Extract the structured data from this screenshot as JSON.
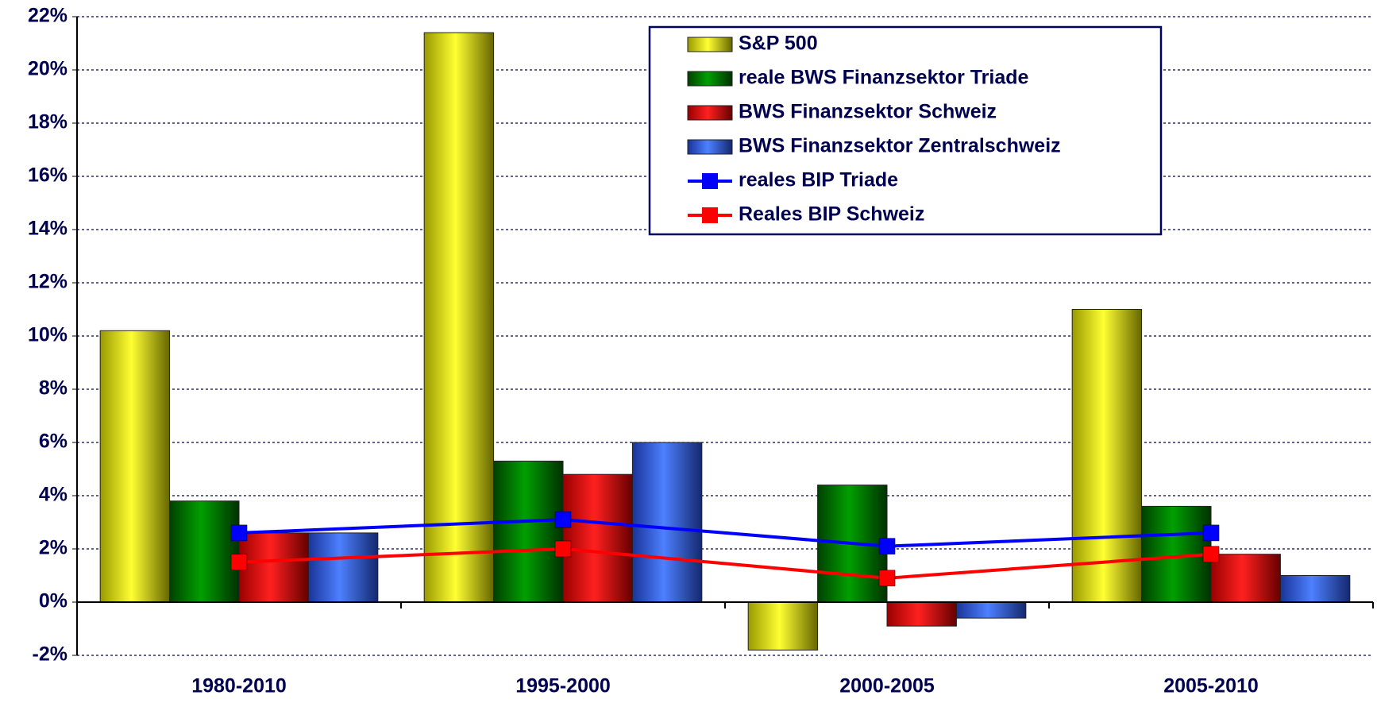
{
  "chart_data": {
    "type": "bar",
    "categories": [
      "1980-2010",
      "1995-2000",
      "2000-2005",
      "2005-2010"
    ],
    "series": [
      {
        "name": "S&P 500",
        "color": "#ffff00",
        "values": [
          10.2,
          21.4,
          -1.8,
          11.0
        ]
      },
      {
        "name": "reale BWS Finanzsektor Triade",
        "color": "#008000",
        "values": [
          3.8,
          5.3,
          4.4,
          3.6
        ]
      },
      {
        "name": "BWS Finanzsektor Schweiz",
        "color": "#ff0000",
        "values": [
          2.6,
          4.8,
          -0.9,
          1.8
        ]
      },
      {
        "name": "BWS Finanzsektor Zentralschweiz",
        "color": "#3366ff",
        "values": [
          2.6,
          6.0,
          -0.6,
          1.0
        ]
      },
      {
        "name": "reales BIP Triade",
        "color": "#0000ff",
        "type": "line",
        "values": [
          2.6,
          3.1,
          2.1,
          2.6
        ]
      },
      {
        "name": "Reales BIP Schweiz",
        "color": "#ff0000",
        "type": "line",
        "values": [
          1.5,
          2.0,
          0.9,
          1.8
        ]
      }
    ],
    "ylim": [
      -2,
      22
    ],
    "yticks": [
      {
        "value": -2,
        "label": "-2%"
      },
      {
        "value": 0,
        "label": "0%"
      },
      {
        "value": 2,
        "label": "2%"
      },
      {
        "value": 4,
        "label": "4%"
      },
      {
        "value": 6,
        "label": "6%"
      },
      {
        "value": 8,
        "label": "8%"
      },
      {
        "value": 10,
        "label": "10%"
      },
      {
        "value": 12,
        "label": "12%"
      },
      {
        "value": 14,
        "label": "14%"
      },
      {
        "value": 16,
        "label": "16%"
      },
      {
        "value": 18,
        "label": "18%"
      },
      {
        "value": 20,
        "label": "20%"
      },
      {
        "value": 22,
        "label": "22%"
      }
    ],
    "grid": true,
    "legend": "top-right"
  }
}
